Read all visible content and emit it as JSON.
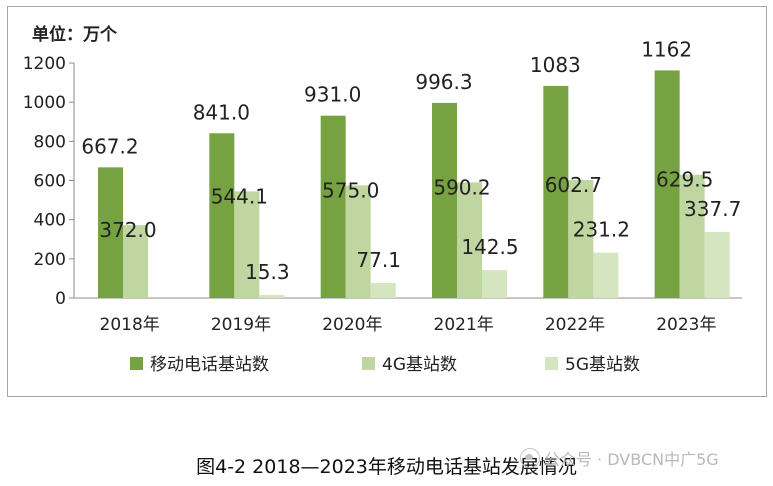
{
  "unit_label": "单位：万个",
  "caption": "图4-2  2018—2023年移动电话基站发展情况",
  "watermark": "公众号 · DVBCN中广5G",
  "chart_data": {
    "type": "bar",
    "categories": [
      "2018年",
      "2019年",
      "2020年",
      "2021年",
      "2022年",
      "2023年"
    ],
    "series": [
      {
        "name": "移动电话基站数",
        "values": [
          667.2,
          841.0,
          931.0,
          996.3,
          1083,
          1162
        ],
        "labels": [
          "667.2",
          "841.0",
          "931.0",
          "996.3",
          "1083",
          "1162"
        ],
        "color": "#77a241"
      },
      {
        "name": "4G基站数",
        "values": [
          372.0,
          544.1,
          575.0,
          590.2,
          602.7,
          629.5
        ],
        "labels": [
          "372.0",
          "544.1",
          "575.0",
          "590.2",
          "602.7",
          "629.5"
        ],
        "color": "#bfd6a0"
      },
      {
        "name": "5G基站数",
        "values": [
          null,
          15.3,
          77.1,
          142.5,
          231.2,
          337.7
        ],
        "labels": [
          "",
          "15.3",
          "77.1",
          "142.5",
          "231.2",
          "337.7"
        ],
        "color": "#d4e5bf"
      }
    ],
    "yticks": [
      "0",
      "200",
      "400",
      "600",
      "800",
      "1000",
      "1200"
    ],
    "ylim": [
      0,
      1200
    ],
    "grid": false,
    "legend": "bottom"
  }
}
